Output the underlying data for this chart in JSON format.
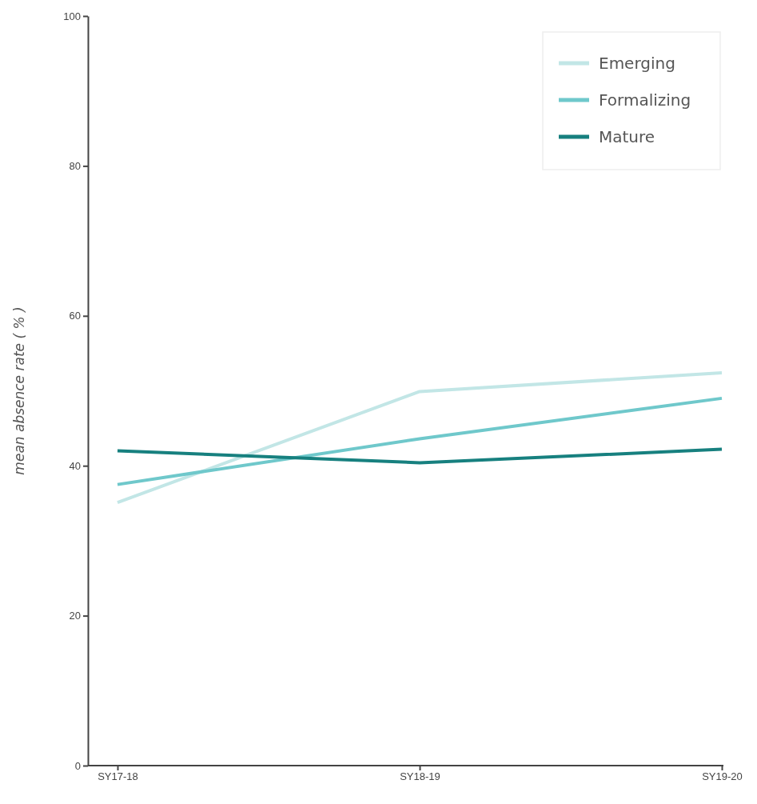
{
  "chart_data": {
    "type": "line",
    "ylabel": "mean absence rate ( % )",
    "categories": [
      "SY17-18",
      "SY18-19",
      "SY19-20"
    ],
    "series": [
      {
        "name": "Emerging",
        "color": "#c2e6e6",
        "values": [
          35.1,
          49.9,
          52.4
        ]
      },
      {
        "name": "Formalizing",
        "color": "#6fc8cb",
        "values": [
          37.5,
          43.6,
          49.0
        ]
      },
      {
        "name": "Mature",
        "color": "#17807f",
        "values": [
          42.0,
          40.4,
          42.2
        ]
      }
    ],
    "ylim": [
      0,
      100
    ],
    "yticks": [
      0,
      20,
      40,
      60,
      80,
      100
    ],
    "grid": false,
    "legend": "top right",
    "marker": "none",
    "line_style": "solid"
  }
}
